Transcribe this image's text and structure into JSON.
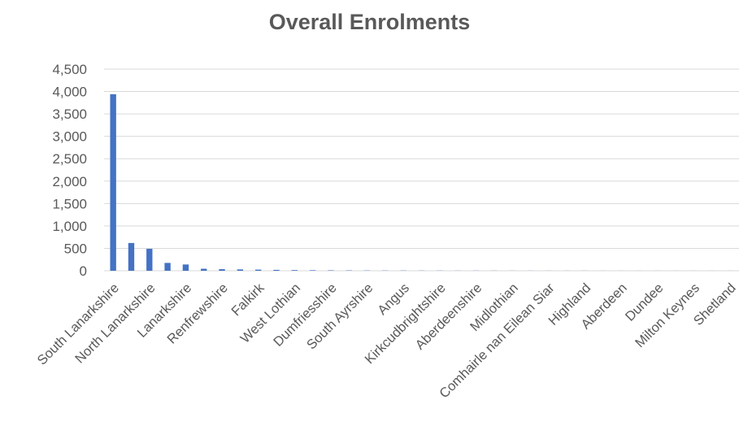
{
  "chart_data": {
    "type": "bar",
    "title": "Overall Enrolments",
    "xlabel": "",
    "ylabel": "",
    "ylim": [
      0,
      4500
    ],
    "yticks": [
      0,
      500,
      1000,
      1500,
      2000,
      2500,
      3000,
      3500,
      4000,
      4500
    ],
    "ytick_labels": [
      "0",
      "500",
      "1,000",
      "1,500",
      "2,000",
      "2,500",
      "3,000",
      "3,500",
      "4,000",
      "4,500"
    ],
    "grid": true,
    "legend": "none",
    "bar_color": "#4472C4",
    "categories": [
      "South Lanarkshire",
      "",
      "North Lanarkshire",
      "",
      "Lanarkshire",
      "",
      "Renfrewshire",
      "",
      "Falkirk",
      "",
      "West Lothian",
      "",
      "Dumfriesshire",
      "",
      "South Ayrshire",
      "",
      "Angus",
      "",
      "Kirkcudbrightshire",
      "",
      "Aberdeenshire",
      "",
      "Midlothian",
      "",
      "Comhairle nan Eilean Siar",
      "",
      "Highland",
      "",
      "Aberdeen",
      "",
      "Dundee",
      "",
      "Milton Keynes",
      "",
      "Shetland"
    ],
    "values": [
      3940,
      620,
      490,
      175,
      140,
      45,
      35,
      30,
      25,
      20,
      15,
      12,
      10,
      8,
      6,
      5,
      5,
      4,
      4,
      3,
      3,
      3,
      2,
      2,
      2,
      2,
      2,
      1,
      1,
      1,
      1,
      1,
      1,
      1,
      1
    ]
  }
}
